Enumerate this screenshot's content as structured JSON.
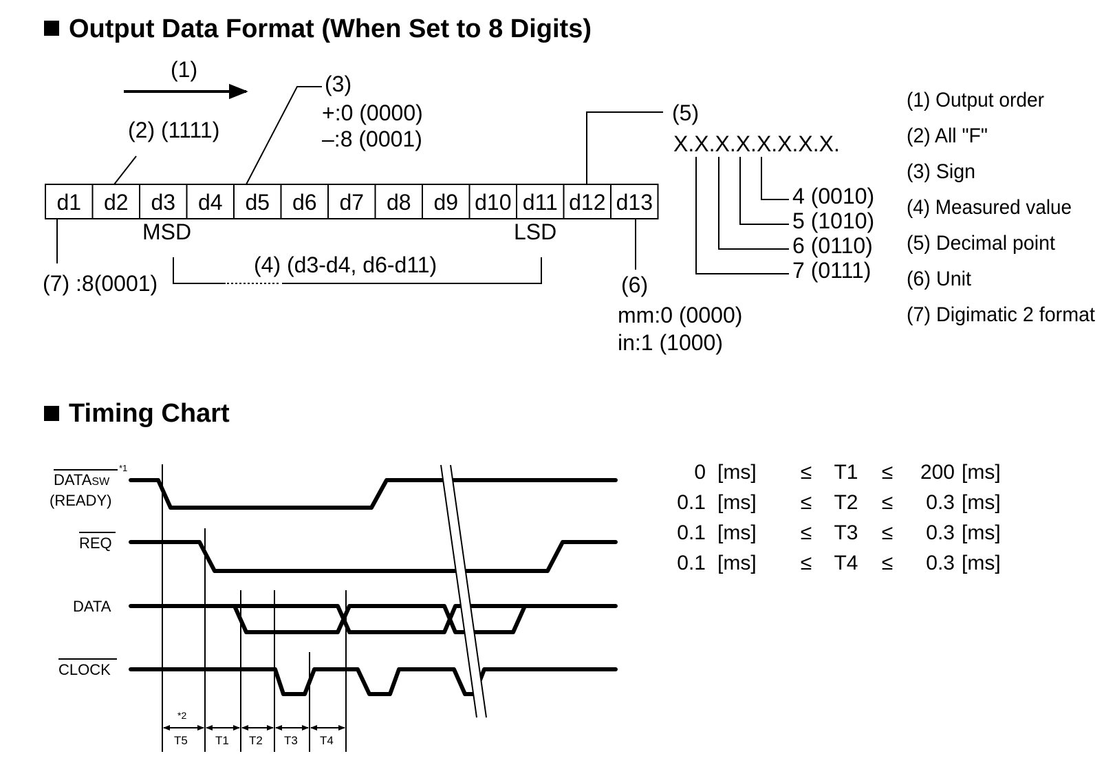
{
  "format_section": {
    "heading": "Output Data Format (When Set to 8 Digits)",
    "cells": [
      "d1",
      "d2",
      "d3",
      "d4",
      "d5",
      "d6",
      "d7",
      "d8",
      "d9",
      "d10",
      "d11",
      "d12",
      "d13"
    ],
    "label_1": "(1)",
    "label_2": "(2)  (1111)",
    "label_3": "(3)",
    "sign_plus": "+:0 (0000)",
    "sign_minus": "–:8 (0001)",
    "msd": "MSD",
    "lsd": "LSD",
    "label_4": "(4)  (d3-d4, d6-d11)",
    "label_7": "(7) :8(0001)",
    "label_6": "(6)",
    "unit_mm": "mm:0 (0000)",
    "unit_in": "in:1 (1000)",
    "label_5": "(5)",
    "decimal_pattern": "X.X.X.X.X.X.X.X.",
    "dp_codes": [
      "4 (0010)",
      "5 (1010)",
      "6 (0110)",
      "7 (0111)"
    ],
    "legend": [
      "(1) Output order",
      "(2) All \"F\"",
      "(3) Sign",
      "(4) Measured value",
      "(5) Decimal point",
      "(6) Unit",
      "(7) Digimatic 2 format"
    ]
  },
  "timing_section": {
    "heading": "Timing Chart",
    "signals": {
      "datasw_main": "DATA",
      "datasw_sub": "SW",
      "datasw_note": "*1",
      "ready": "(READY)",
      "req": "REQ",
      "data": "DATA",
      "clock": "CLOCK"
    },
    "note_2": "*2",
    "intervals": [
      "T5",
      "T1",
      "T2",
      "T3",
      "T4"
    ],
    "formulas": [
      {
        "min": "0",
        "min_unit": "[ms]",
        "op": "≤",
        "name": "T1",
        "op2": "≤",
        "max": "200",
        "max_unit": "[ms]"
      },
      {
        "min": "0.1",
        "min_unit": "[ms]",
        "op": "≤",
        "name": "T2",
        "op2": "≤",
        "max": "0.3",
        "max_unit": "[ms]"
      },
      {
        "min": "0.1",
        "min_unit": "[ms]",
        "op": "≤",
        "name": "T3",
        "op2": "≤",
        "max": "0.3",
        "max_unit": "[ms]"
      },
      {
        "min": "0.1",
        "min_unit": "[ms]",
        "op": "≤",
        "name": "T4",
        "op2": "≤",
        "max": "0.3",
        "max_unit": "[ms]"
      }
    ]
  }
}
